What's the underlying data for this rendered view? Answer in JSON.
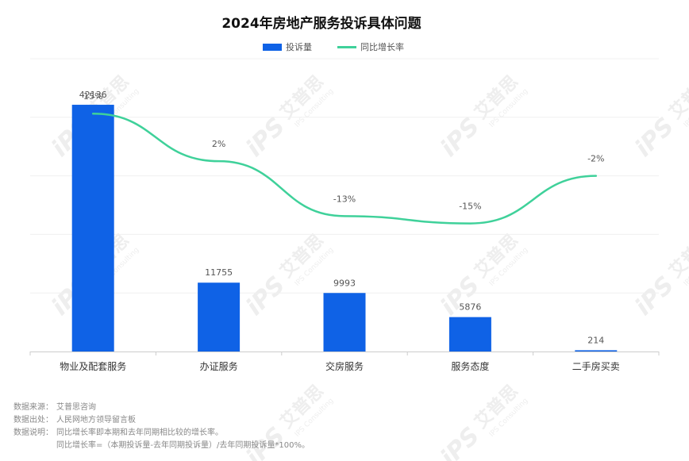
{
  "chart_data": {
    "type": "bar",
    "title": "2024年房地产服务投诉具体问题",
    "categories": [
      "物业及配套服务",
      "办证服务",
      "交房服务",
      "服务态度",
      "二手房买卖"
    ],
    "series": [
      {
        "name": "投诉量",
        "type": "bar",
        "axis": "left",
        "color": "#0f62e6",
        "values": [
          42136,
          11755,
          9993,
          5876,
          214
        ],
        "labels": [
          "42136",
          "11755",
          "9993",
          "5876",
          "214"
        ]
      },
      {
        "name": "同比增长率",
        "type": "line",
        "axis": "right",
        "color": "#3fd19a",
        "values": [
          15,
          2,
          -13,
          -15,
          -2
        ],
        "labels": [
          "15%",
          "2%",
          "-13%",
          "-15%",
          "-2%"
        ]
      }
    ],
    "ylim_left": [
      0,
      50000
    ],
    "ylim_right": [
      -50,
      30
    ],
    "grid": true,
    "legend_position": "top-center"
  },
  "watermark": {
    "brand": "iPS",
    "name": "艾普思",
    "sub": "IPS Consulting"
  },
  "notes": {
    "source_label": "数据来源：",
    "source_value": "艾普思咨询",
    "origin_label": "数据出处：",
    "origin_value": "人民网地方领导留言板",
    "desc_label": "数据说明：",
    "desc_value": "同比增长率即本期和去年同期相比较的增长率。",
    "formula": "同比增长率=（本期投诉量-去年同期投诉量）/去年同期投诉量*100%。"
  }
}
